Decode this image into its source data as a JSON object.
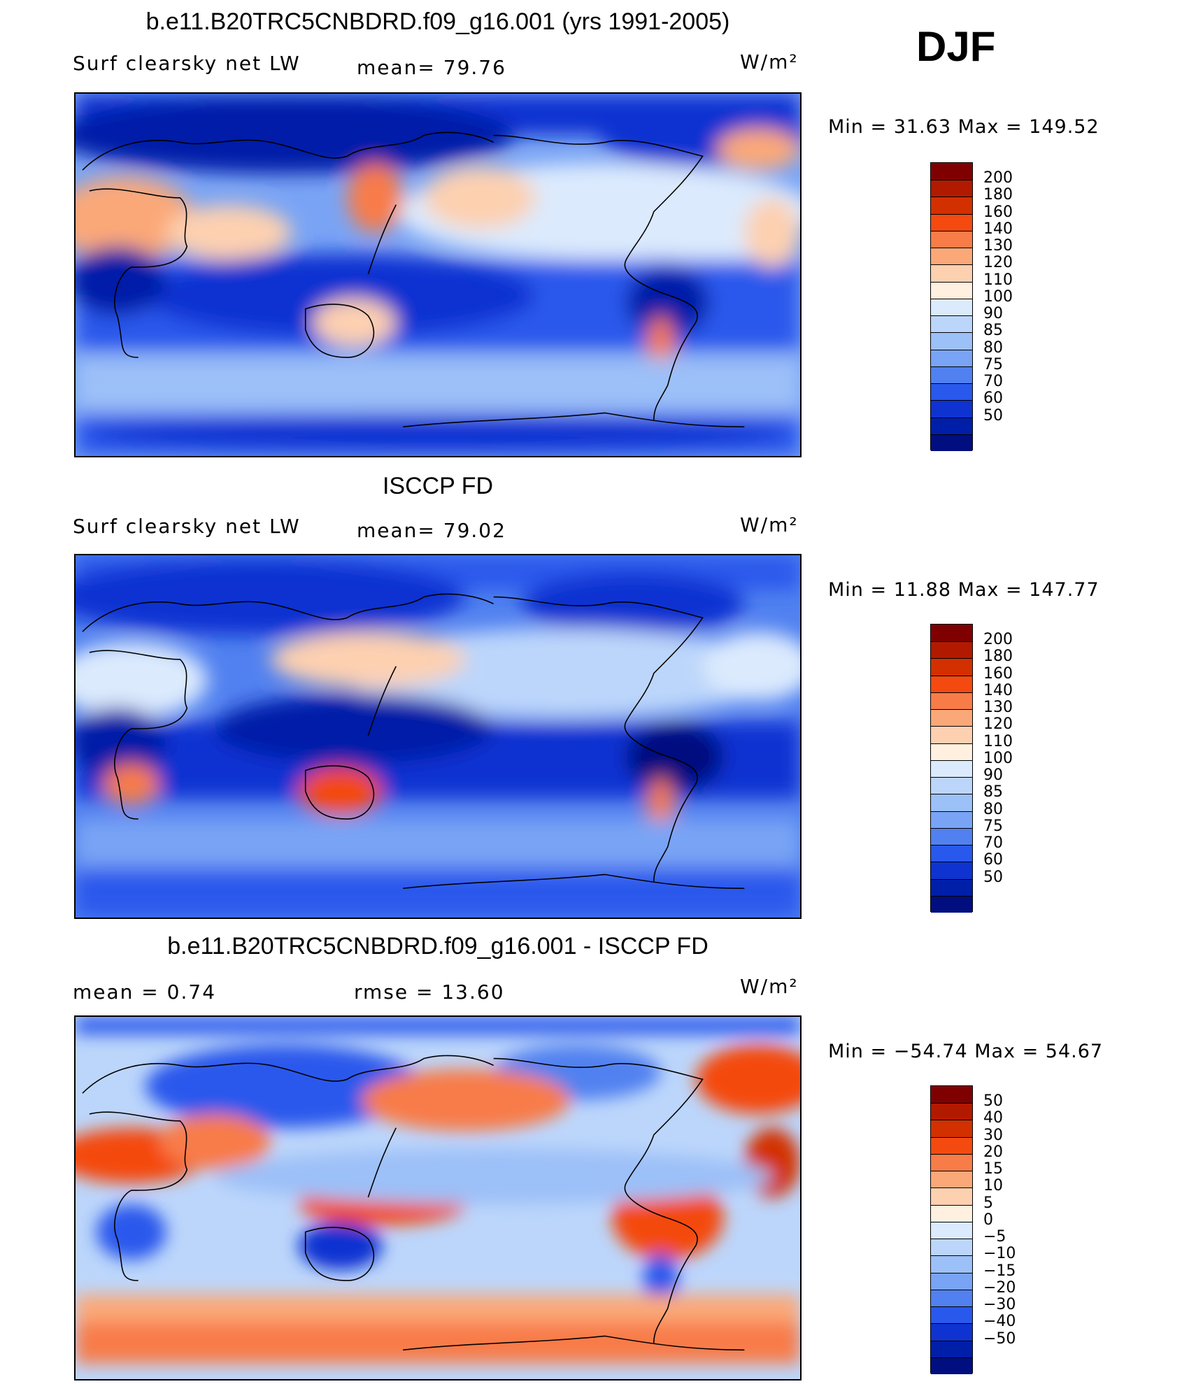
{
  "season": "DJF",
  "panels": [
    {
      "title": "b.e11.B20TRC5CNBDRD.f09_g16.001 (yrs 1991-2005)",
      "variable": "Surf clearsky net LW",
      "stat1": "mean=   79.76",
      "stat2": "",
      "units": "W/m²",
      "minmax": "Min =   31.63 Max = 149.52",
      "colorbar": {
        "colors": [
          "#7f0000",
          "#b21a00",
          "#d33000",
          "#f44a10",
          "#f87c48",
          "#fba878",
          "#fdd0b0",
          "#fff0e0",
          "#dbeafd",
          "#bcd6fb",
          "#9cc0f8",
          "#79a4f5",
          "#5181f0",
          "#2958ec",
          "#0f33d1",
          "#001fa8",
          "#000e80"
        ],
        "labels": [
          "200",
          "180",
          "160",
          "140",
          "130",
          "120",
          "110",
          "100",
          "90",
          "85",
          "80",
          "75",
          "70",
          "60",
          "50"
        ]
      }
    },
    {
      "title": "ISCCP FD",
      "variable": "Surf clearsky net LW",
      "stat1": "mean=   79.02",
      "stat2": "",
      "units": "W/m²",
      "minmax": "Min =   11.88 Max = 147.77",
      "colorbar": {
        "colors": [
          "#7f0000",
          "#b21a00",
          "#d33000",
          "#f44a10",
          "#f87c48",
          "#fba878",
          "#fdd0b0",
          "#fff0e0",
          "#dbeafd",
          "#bcd6fb",
          "#9cc0f8",
          "#79a4f5",
          "#5181f0",
          "#2958ec",
          "#0f33d1",
          "#001fa8",
          "#000e80"
        ],
        "labels": [
          "200",
          "180",
          "160",
          "140",
          "130",
          "120",
          "110",
          "100",
          "90",
          "85",
          "80",
          "75",
          "70",
          "60",
          "50"
        ]
      }
    },
    {
      "title": "b.e11.B20TRC5CNBDRD.f09_g16.001 - ISCCP FD",
      "variable": "",
      "stat1": "mean =    0.74",
      "stat2": "rmse =   13.60",
      "units": "W/m²",
      "minmax": "Min = −54.74 Max =   54.67",
      "colorbar": {
        "colors": [
          "#7f0000",
          "#b21a00",
          "#d33000",
          "#f44a10",
          "#f87c48",
          "#fba878",
          "#fdd0b0",
          "#fff0e0",
          "#dbeafd",
          "#bcd6fb",
          "#9cc0f8",
          "#79a4f5",
          "#5181f0",
          "#2958ec",
          "#0f33d1",
          "#001fa8",
          "#000e80"
        ],
        "labels": [
          "50",
          "40",
          "30",
          "20",
          "15",
          "10",
          "5",
          "0",
          "−5",
          "−10",
          "−15",
          "−20",
          "−30",
          "−40",
          "−50"
        ]
      }
    }
  ]
}
